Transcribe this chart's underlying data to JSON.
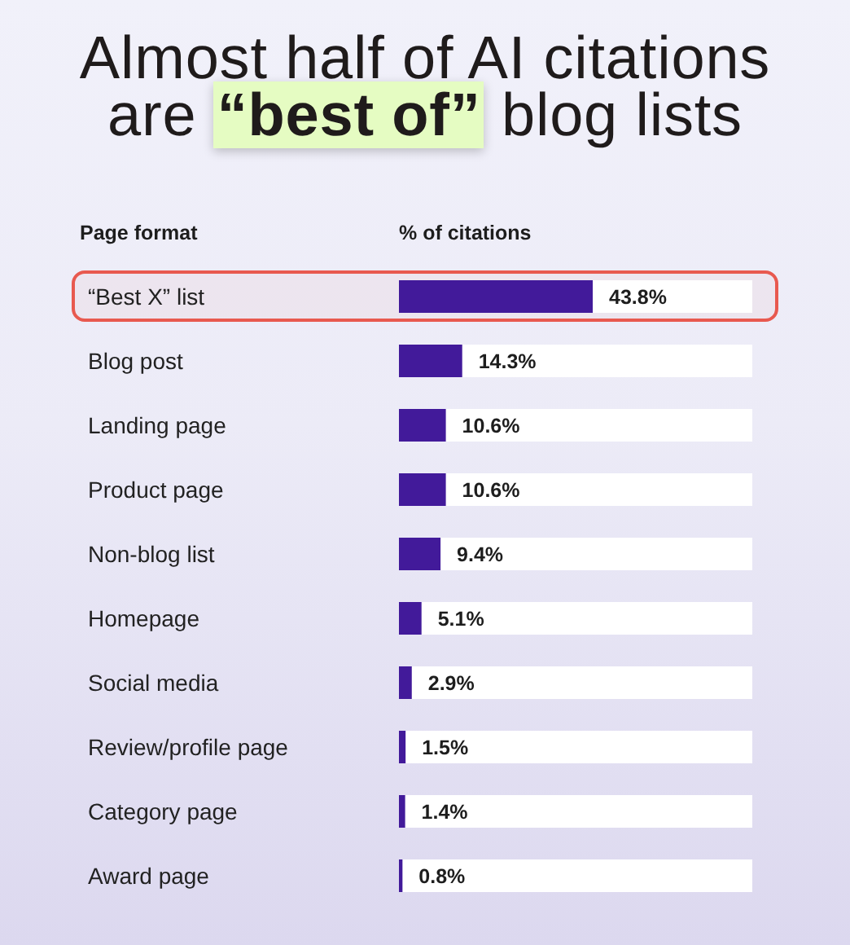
{
  "chart_data": {
    "type": "bar",
    "orientation": "horizontal",
    "title": "Almost half of AI citations are “best of” blog lists",
    "ylabel": "Page format",
    "xlabel": "% of citations",
    "categories": [
      "“Best X” list",
      "Blog post",
      "Landing page",
      "Product page",
      "Non-blog list",
      "Homepage",
      "Social media",
      "Review/profile page",
      "Category page",
      "Award page"
    ],
    "values": [
      43.8,
      14.3,
      10.6,
      10.6,
      9.4,
      5.1,
      2.9,
      1.5,
      1.4,
      0.8
    ],
    "value_labels": [
      "43.8%",
      "14.3%",
      "10.6%",
      "10.6%",
      "9.4%",
      "5.1%",
      "2.9%",
      "1.5%",
      "1.4%",
      "0.8%"
    ],
    "color": "#421a9a",
    "bands": [
      {
        "axis": "y",
        "from": "“Best X” list",
        "to": "“Best X” list",
        "color": "#e8594f"
      }
    ]
  }
}
